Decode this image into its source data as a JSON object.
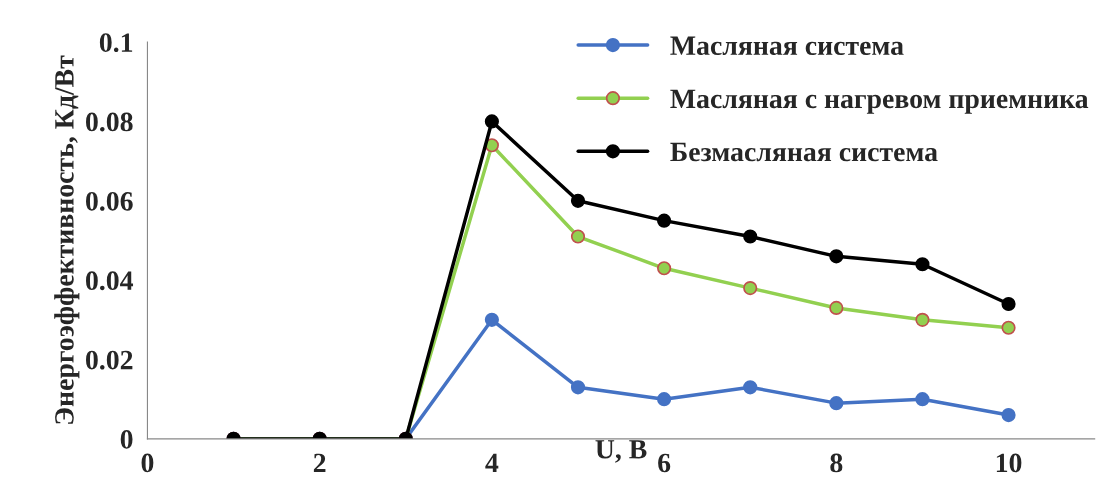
{
  "chart_data": {
    "type": "line",
    "xlabel": "U, В",
    "ylabel": "Энергоэффективность, Кд/Вт",
    "x": [
      1,
      2,
      3,
      4,
      5,
      6,
      7,
      8,
      9,
      10
    ],
    "xlim": [
      0,
      11
    ],
    "xticks": [
      0,
      2,
      4,
      6,
      8,
      10
    ],
    "ylim": [
      0,
      0.1
    ],
    "yticks": [
      0,
      0.02,
      0.04,
      0.06,
      0.08,
      0.1
    ],
    "grid": false,
    "legend": "top right",
    "marker": "circle",
    "line_style": "solid",
    "series": [
      {
        "name": "Масляная система",
        "color": "#4472c4",
        "values": [
          0,
          0,
          0,
          0.03,
          0.013,
          0.01,
          0.013,
          0.009,
          0.01,
          0.006
        ]
      },
      {
        "name": "Масляная с нагревом приемника",
        "color": "#92d050",
        "values": [
          0,
          0,
          0,
          0.074,
          0.051,
          0.043,
          0.038,
          0.033,
          0.03,
          0.028
        ]
      },
      {
        "name": "Безмасляная система",
        "color": "#000000",
        "values": [
          0,
          0,
          0,
          0.08,
          0.06,
          0.055,
          0.051,
          0.046,
          0.044,
          0.034
        ]
      }
    ]
  }
}
